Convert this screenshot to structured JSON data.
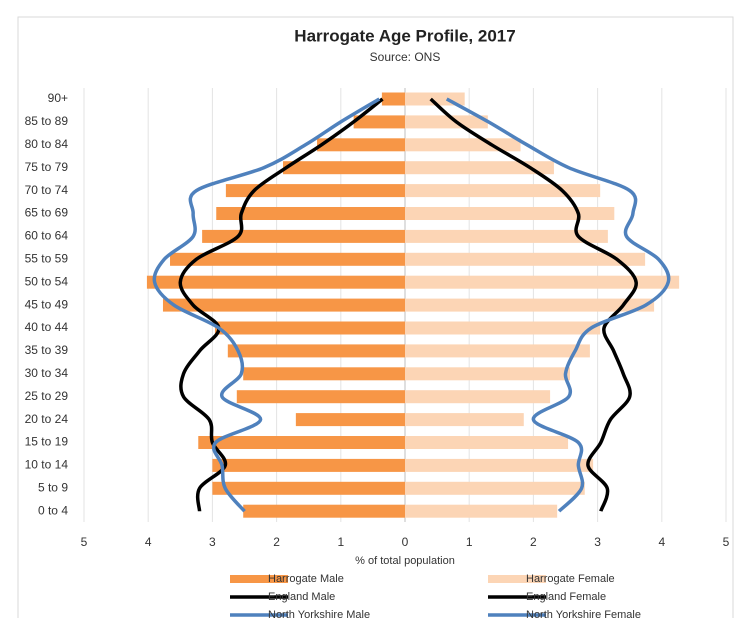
{
  "chart_data": {
    "type": "pyramid",
    "title": "Harrogate Age Profile, 2017",
    "subtitle": "Source: ONS",
    "x_label": "% of total population",
    "categories": [
      "90+",
      "85 to 89",
      "80 to 84",
      "75 to 79",
      "70 to 74",
      "65 to 69",
      "60 to 64",
      "55 to 59",
      "50 to 54",
      "45 to 49",
      "40 to 44",
      "35 to 39",
      "30 to 34",
      "25 to 29",
      "20 to 24",
      "15 to 19",
      "10 to 14",
      "5 to 9",
      "0 to 4"
    ],
    "xlim": [
      -5,
      5
    ],
    "xticks": [
      {
        "value": -5,
        "label": "5"
      },
      {
        "value": -4,
        "label": "4"
      },
      {
        "value": -3,
        "label": "3"
      },
      {
        "value": -2,
        "label": "2"
      },
      {
        "value": -1,
        "label": "1"
      },
      0,
      1,
      2,
      3,
      4,
      5
    ],
    "grid": true,
    "legend": "bottom",
    "series": [
      {
        "name": "Harrogate Male",
        "style": "bar",
        "color": "#f79646",
        "values": [
          -0.36,
          -0.8,
          -1.37,
          -1.9,
          -2.79,
          -2.94,
          -3.16,
          -3.66,
          -4.02,
          -3.77,
          -2.96,
          -2.76,
          -2.52,
          -2.62,
          -1.7,
          -3.22,
          -3.0,
          -3.0,
          -2.52
        ]
      },
      {
        "name": "Harrogate Female",
        "style": "bar",
        "color": "#fcd5b5",
        "values": [
          0.93,
          1.29,
          1.8,
          2.32,
          3.04,
          3.26,
          3.16,
          3.74,
          4.27,
          3.88,
          3.04,
          2.88,
          2.57,
          2.26,
          1.85,
          2.54,
          2.93,
          2.8,
          2.37
        ]
      },
      {
        "name": "England Male",
        "style": "line",
        "color": "#000000",
        "values": [
          -0.35,
          -0.8,
          -1.3,
          -1.85,
          -2.35,
          -2.55,
          -2.6,
          -3.25,
          -3.5,
          -3.3,
          -2.9,
          -3.2,
          -3.45,
          -3.45,
          -3.05,
          -3.0,
          -2.8,
          -3.2,
          -3.2
        ]
      },
      {
        "name": "England Female",
        "style": "line",
        "color": "#000000",
        "values": [
          0.4,
          0.8,
          1.35,
          1.95,
          2.45,
          2.7,
          2.7,
          3.3,
          3.6,
          3.4,
          3.1,
          3.25,
          3.4,
          3.5,
          3.2,
          3.05,
          2.85,
          3.15,
          3.05
        ]
      },
      {
        "name": "North Yorkshire Male",
        "style": "line",
        "color": "#4f81bd",
        "values": [
          -0.4,
          -1.0,
          -1.55,
          -2.2,
          -3.25,
          -3.3,
          -3.3,
          -3.75,
          -3.9,
          -3.6,
          -2.9,
          -2.6,
          -2.55,
          -2.85,
          -2.25,
          -2.95,
          -2.85,
          -2.8,
          -2.5
        ]
      },
      {
        "name": "North Yorkshire Female",
        "style": "line",
        "color": "#4f81bd",
        "values": [
          0.65,
          1.3,
          1.9,
          2.55,
          3.5,
          3.55,
          3.45,
          3.95,
          4.1,
          3.75,
          2.9,
          2.65,
          2.5,
          2.55,
          2.0,
          2.7,
          2.7,
          2.75,
          2.4
        ]
      }
    ]
  }
}
